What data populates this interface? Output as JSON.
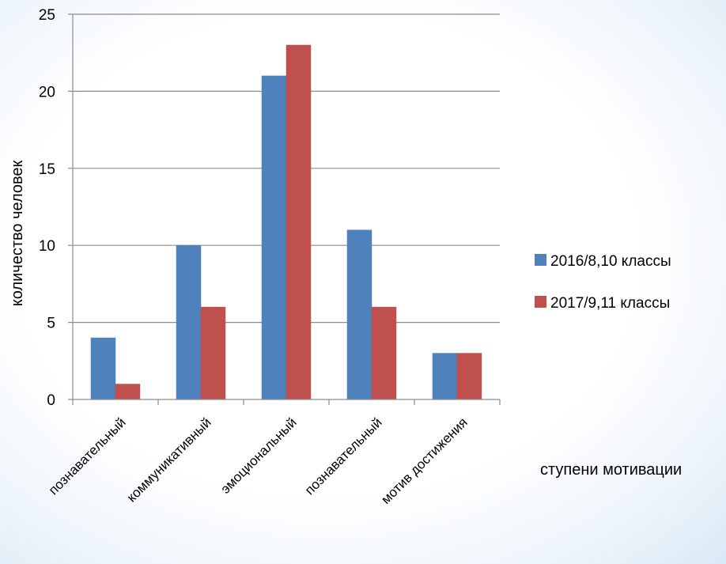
{
  "chart_data": {
    "type": "bar",
    "title": "",
    "xlabel": "ступени мотивации",
    "ylabel": "количество человек",
    "ylim": [
      0,
      25
    ],
    "yticks": [
      0,
      5,
      10,
      15,
      20,
      25
    ],
    "grid": true,
    "legend_position": "right",
    "categories": [
      "познавательный",
      "коммуникативный",
      "эмоциональный",
      "познавательный",
      "мотив достижения"
    ],
    "series": [
      {
        "name": "2016/8,10 классы",
        "color": "#4f81bd",
        "values": [
          4,
          10,
          21,
          11,
          3
        ]
      },
      {
        "name": "2017/9,11 классы",
        "color": "#c0504d",
        "values": [
          1,
          6,
          23,
          6,
          3
        ]
      }
    ]
  }
}
